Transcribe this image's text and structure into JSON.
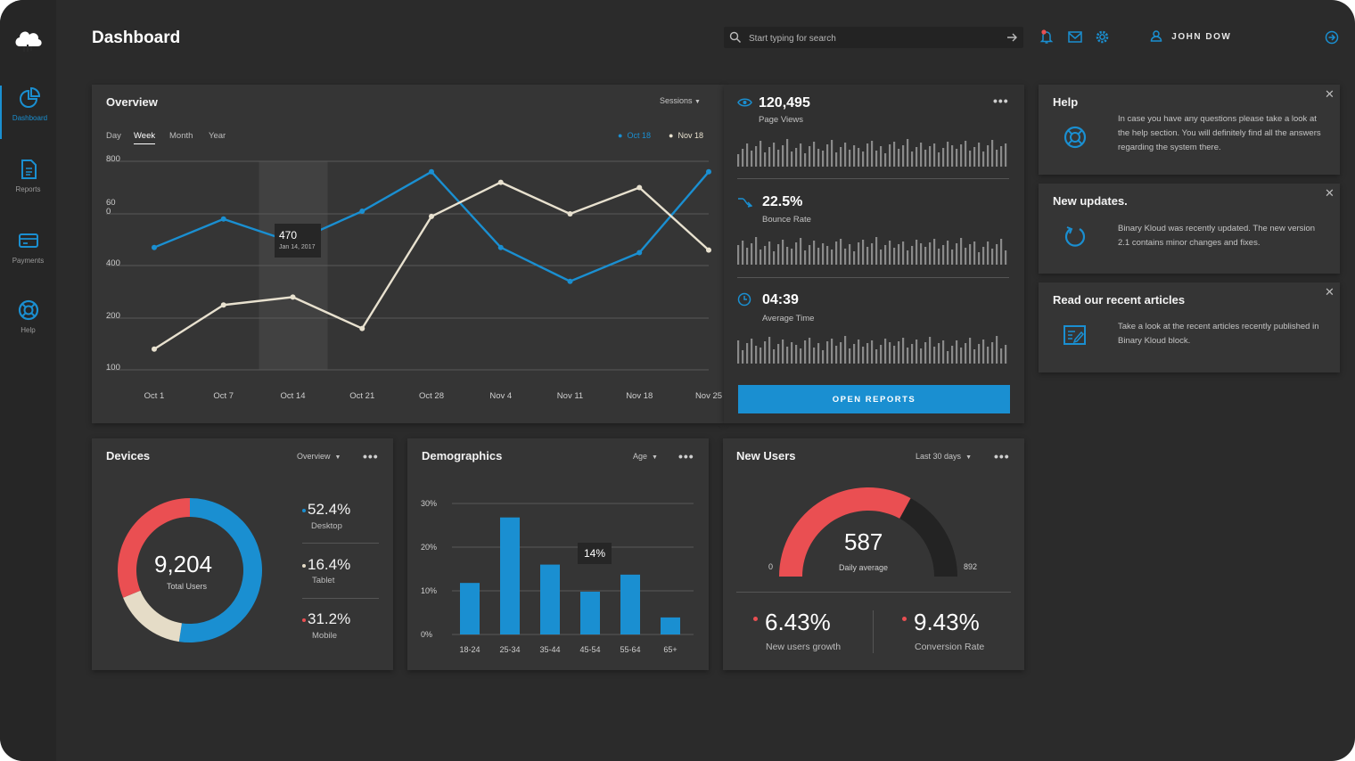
{
  "header": {
    "title": "Dashboard",
    "search_placeholder": "Start typing for search",
    "user_name": "JOHN DOW"
  },
  "sidebar": {
    "items": [
      {
        "label": "Dashboard",
        "icon": "pie-chart-icon",
        "active": true
      },
      {
        "label": "Reports",
        "icon": "document-icon"
      },
      {
        "label": "Payments",
        "icon": "credit-card-icon"
      },
      {
        "label": "Help",
        "icon": "lifebuoy-icon"
      }
    ]
  },
  "overview": {
    "title": "Overview",
    "dropdown": "Sessions",
    "tabs": [
      "Day",
      "Week",
      "Month",
      "Year"
    ],
    "active_tab": "Week",
    "tooltip_value": "470",
    "tooltip_date": "Jan 14, 2017"
  },
  "chart_data": [
    {
      "type": "line",
      "x": [
        "Oct 1",
        "Oct 7",
        "Oct 14",
        "Oct 21",
        "Oct 28",
        "Nov 4",
        "Nov 11",
        "Nov 18",
        "Nov 25"
      ],
      "y_ticks": [
        "800",
        "60\n0",
        "400",
        "200",
        "100"
      ],
      "series": [
        {
          "name": "Oct 18",
          "color": "#1a8fd1",
          "values": [
            470,
            580,
            490,
            610,
            760,
            470,
            340,
            450,
            760
          ]
        },
        {
          "name": "Nov 18",
          "color": "#e8e1cf",
          "values": [
            140,
            250,
            280,
            180,
            590,
            720,
            600,
            700,
            460
          ]
        }
      ],
      "highlight_category": "Oct 14",
      "grid": true
    },
    {
      "type": "pie",
      "title": "Devices",
      "center_value": "9,204",
      "center_label": "Total Users",
      "slices": [
        {
          "name": "Desktop",
          "value": 52.4,
          "label": "52.4%",
          "color": "#1a8fd1"
        },
        {
          "name": "Tablet",
          "value": 16.4,
          "label": "16.4%",
          "color": "#e5dcc7"
        },
        {
          "name": "Mobile",
          "value": 31.2,
          "label": "31.2%",
          "color": "#ea4f52"
        }
      ]
    },
    {
      "type": "bar",
      "title": "Demographics",
      "categories": [
        "18-24",
        "25-34",
        "35-44",
        "45-54",
        "55-64",
        "65+"
      ],
      "values": [
        11.8,
        26.8,
        16,
        9.8,
        13.7,
        3.9
      ],
      "y_ticks": [
        "30%",
        "20%",
        "10%",
        "0%"
      ],
      "ylim": [
        0,
        30
      ],
      "tooltip": "14%"
    }
  ],
  "stats": {
    "page_views": {
      "value": "120,495",
      "label": "Page Views"
    },
    "bounce_rate": {
      "value": "22.5%",
      "label": "Bounce Rate"
    },
    "avg_time": {
      "value": "04:39",
      "label": "Average Time"
    },
    "button": "OPEN REPORTS"
  },
  "devices": {
    "dropdown": "Overview"
  },
  "demographics": {
    "dropdown": "Age"
  },
  "new_users": {
    "title": "New Users",
    "dropdown": "Last 30 days",
    "gauge_value": "587",
    "gauge_label": "Daily average",
    "gauge_min": "0",
    "gauge_max": "892",
    "gauge_fraction": 0.658,
    "growth_value": "6.43%",
    "growth_label": "New users growth",
    "conversion_value": "9.43%",
    "conversion_label": "Conversion Rate"
  },
  "help_cards": [
    {
      "title": "Help",
      "text": "In case you have any questions please take a look at the help section. You will definitely find all the answers regarding the system there."
    },
    {
      "title": "New updates.",
      "text": "Binary Kloud was recently updated. The new version 2.1 contains minor changes and fixes."
    },
    {
      "title": "Read our recent articles",
      "text": "Take a look at the recent articles recently published in Binary Kloud block."
    }
  ],
  "colors": {
    "accent": "#1a8fd1",
    "red": "#ea4f52",
    "cream": "#e8e1cf",
    "bg": "#2b2b2b",
    "card": "#353535"
  }
}
